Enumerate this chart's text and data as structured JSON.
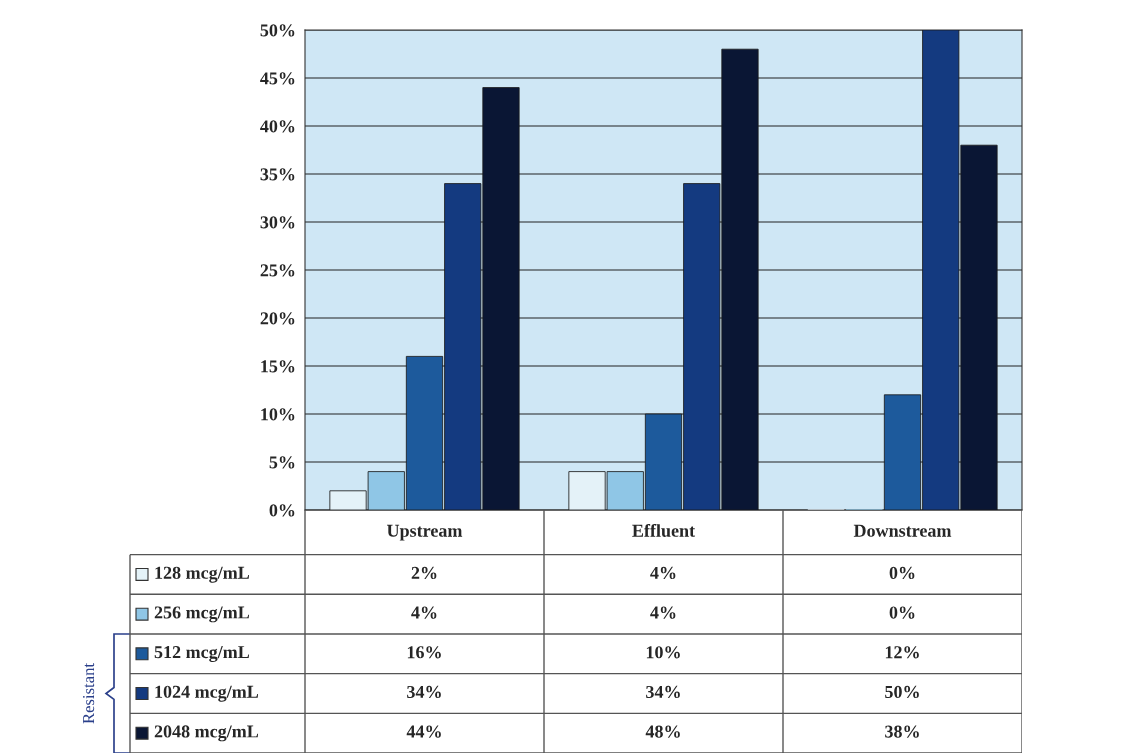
{
  "chart_data": {
    "type": "bar",
    "categories": [
      "Upstream",
      "Effluent",
      "Downstream"
    ],
    "series": [
      {
        "name": "128 mcg/mL",
        "color": "#e4f2f8",
        "values": [
          2,
          4,
          0
        ],
        "value_labels": [
          "2%",
          "4%",
          "0%"
        ]
      },
      {
        "name": "256 mcg/mL",
        "color": "#8fc6e6",
        "values": [
          4,
          4,
          0
        ],
        "value_labels": [
          "4%",
          "4%",
          "0%"
        ]
      },
      {
        "name": "512 mcg/mL",
        "color": "#1d5a9c",
        "values": [
          16,
          10,
          12
        ],
        "value_labels": [
          "16%",
          "10%",
          "12%"
        ]
      },
      {
        "name": "1024 mcg/mL",
        "color": "#143a80",
        "values": [
          34,
          34,
          50
        ],
        "value_labels": [
          "34%",
          "34%",
          "50%"
        ]
      },
      {
        "name": "2048 mcg/mL",
        "color": "#0a1634",
        "values": [
          44,
          48,
          38
        ],
        "value_labels": [
          "44%",
          "48%",
          "38%"
        ]
      }
    ],
    "ylim": [
      0,
      50
    ],
    "yticks": [
      {
        "value": 0,
        "label": "0%"
      },
      {
        "value": 5,
        "label": "5%"
      },
      {
        "value": 10,
        "label": "10%"
      },
      {
        "value": 15,
        "label": "15%"
      },
      {
        "value": 20,
        "label": "20%"
      },
      {
        "value": 25,
        "label": "25%"
      },
      {
        "value": 30,
        "label": "30%"
      },
      {
        "value": 35,
        "label": "35%"
      },
      {
        "value": 40,
        "label": "40%"
      },
      {
        "value": 45,
        "label": "45%"
      },
      {
        "value": 50,
        "label": "50%"
      }
    ],
    "grid": "y",
    "legend": "bottom",
    "tick_labels": "y",
    "annotations": [
      "Resistant"
    ]
  }
}
